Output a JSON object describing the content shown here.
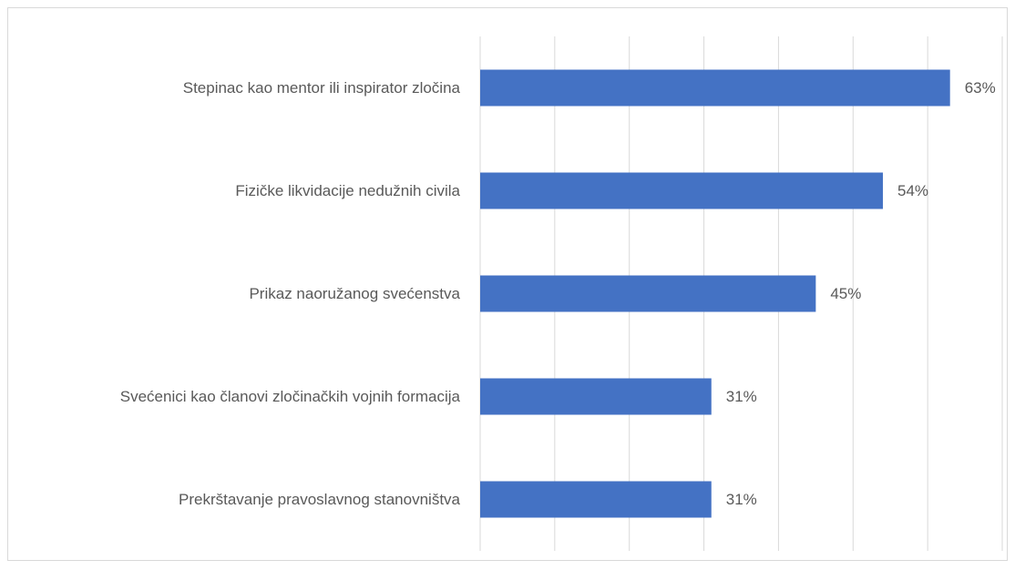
{
  "chart_data": {
    "type": "barh",
    "categories": [
      "Stepinac kao mentor ili inspirator zločina",
      "Fizičke likvidacije nedužnih civila",
      "Prikaz naoružanog svećenstva",
      "Svećenici kao članovi zločinačkih vojnih formacija",
      "Prekrštavanje pravoslavnog stanovništva"
    ],
    "values": [
      63,
      54,
      45,
      31,
      31
    ],
    "value_labels": [
      "63%",
      "54%",
      "45%",
      "31%",
      "31%"
    ],
    "color": "#4472c4",
    "xlim": [
      0,
      70
    ],
    "xticks": [
      0,
      10,
      20,
      30,
      40,
      50,
      60,
      70
    ],
    "grid": true
  }
}
